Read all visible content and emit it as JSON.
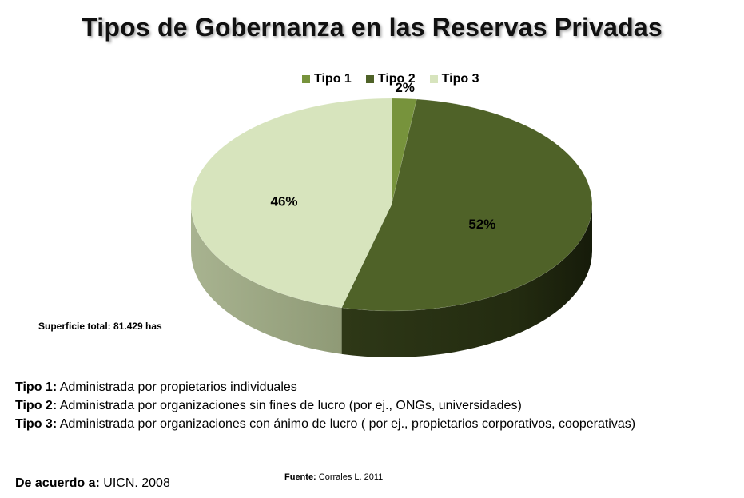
{
  "title": "Tipos de Gobernanza en las Reservas Privadas",
  "colors": {
    "tipo1": "#77933c",
    "tipo2": "#4f6228",
    "tipo3": "#d7e4bd"
  },
  "chart_data": {
    "type": "pie",
    "style": "3d",
    "title": "Tipos de Gobernanza en las Reservas Privadas",
    "legend_position": "top",
    "categories": [
      "Tipo 1",
      "Tipo 2",
      "Tipo 3"
    ],
    "values": [
      2,
      52,
      46
    ],
    "labels": [
      "2%",
      "52%",
      "46%"
    ],
    "unit": "%"
  },
  "legend": [
    {
      "label": "Tipo 1"
    },
    {
      "label": "Tipo 2"
    },
    {
      "label": "Tipo 3"
    }
  ],
  "surface_note": "Superficie total: 81.429 has",
  "definitions": [
    {
      "key": "Tipo 1:",
      "text": " Administrada por propietarios individuales"
    },
    {
      "key": "Tipo 2:",
      "text": " Administrada por organizaciones sin fines de lucro (por ej., ONGs, universidades)"
    },
    {
      "key": "Tipo 3:",
      "text": " Administrada por organizaciones con ánimo de lucro ( por ej., propietarios corporativos, cooperativas)"
    }
  ],
  "source": {
    "key": "Fuente:",
    "text": " Corrales L. 2011"
  },
  "according": {
    "key": "De acuerdo a:",
    "text": " UICN. 2008"
  }
}
